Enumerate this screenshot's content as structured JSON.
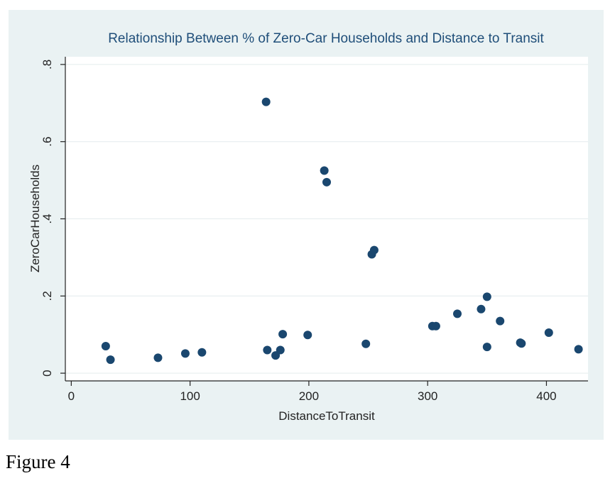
{
  "caption": "Figure 4",
  "chart_data": {
    "type": "scatter",
    "title": "Relationship Between % of Zero-Car Households and Distance to Transit",
    "xlabel": "DistanceToTransit",
    "ylabel": "ZeroCarHouseholds",
    "xlim": [
      -5,
      435
    ],
    "ylim": [
      -0.02,
      0.82
    ],
    "xticks": [
      0,
      100,
      200,
      300,
      400
    ],
    "xtick_labels": [
      "0",
      "100",
      "200",
      "300",
      "400"
    ],
    "yticks": [
      0,
      0.2,
      0.4,
      0.6,
      0.8
    ],
    "ytick_labels": [
      "0",
      ".2",
      ".4",
      ".6",
      ".8"
    ],
    "grid": true,
    "marker_color": "#1a476f",
    "background_color": "#eaf2f3",
    "plot_background_color": "#ffffff",
    "title_color": "#1f4e79",
    "points": [
      {
        "x": 29,
        "y": 0.07
      },
      {
        "x": 33,
        "y": 0.035
      },
      {
        "x": 73,
        "y": 0.04
      },
      {
        "x": 96,
        "y": 0.051
      },
      {
        "x": 110,
        "y": 0.054
      },
      {
        "x": 164,
        "y": 0.703
      },
      {
        "x": 165,
        "y": 0.06
      },
      {
        "x": 172,
        "y": 0.046
      },
      {
        "x": 176,
        "y": 0.06
      },
      {
        "x": 178,
        "y": 0.101
      },
      {
        "x": 199,
        "y": 0.099
      },
      {
        "x": 213,
        "y": 0.525
      },
      {
        "x": 215,
        "y": 0.495
      },
      {
        "x": 248,
        "y": 0.076
      },
      {
        "x": 253,
        "y": 0.308
      },
      {
        "x": 255,
        "y": 0.319
      },
      {
        "x": 304,
        "y": 0.122
      },
      {
        "x": 307,
        "y": 0.122
      },
      {
        "x": 325,
        "y": 0.154
      },
      {
        "x": 345,
        "y": 0.166
      },
      {
        "x": 350,
        "y": 0.198
      },
      {
        "x": 350,
        "y": 0.068
      },
      {
        "x": 361,
        "y": 0.135
      },
      {
        "x": 378,
        "y": 0.079
      },
      {
        "x": 379,
        "y": 0.077
      },
      {
        "x": 402,
        "y": 0.105
      },
      {
        "x": 427,
        "y": 0.062
      }
    ]
  }
}
